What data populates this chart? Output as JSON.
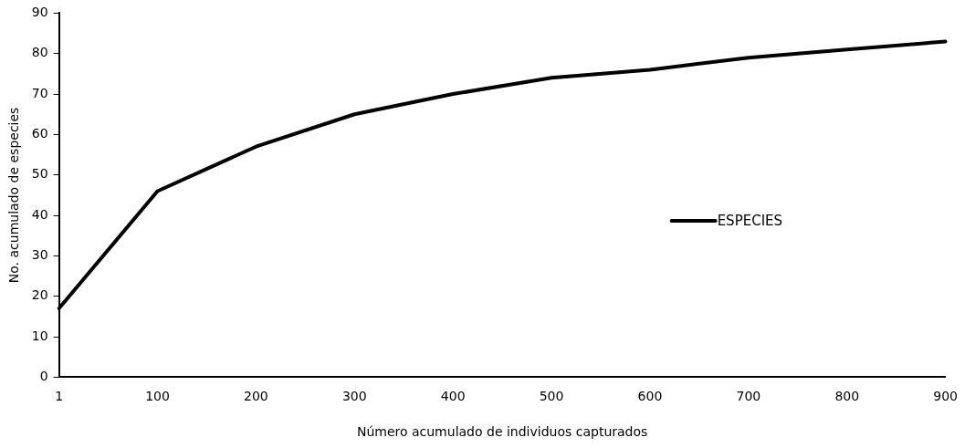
{
  "chart_data": {
    "type": "line",
    "xlabel": "Número acumulado de individuos capturados",
    "ylabel": "No. acumulado de especies",
    "categories": [
      "1",
      "100",
      "200",
      "300",
      "400",
      "500",
      "600",
      "700",
      "800",
      "900"
    ],
    "series": [
      {
        "name": "ESPECIES",
        "color": "#000000",
        "values": [
          17,
          46,
          57,
          65,
          70,
          74,
          76,
          79,
          81,
          83
        ]
      }
    ],
    "ylim": [
      0,
      90
    ],
    "yticks": [
      0,
      10,
      20,
      30,
      40,
      50,
      60,
      70,
      80,
      90
    ],
    "grid": false,
    "legend": "right",
    "marker": "none",
    "line_style": "solid"
  }
}
